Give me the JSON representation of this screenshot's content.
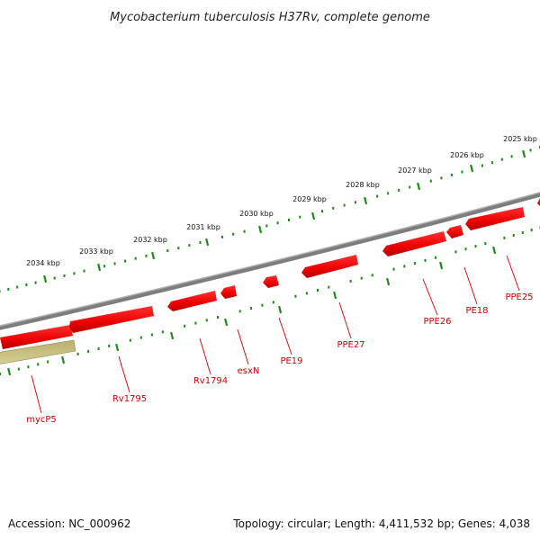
{
  "map": {
    "title": "Mycobacterium tuberculosis H37Rv, complete genome",
    "accession": "Accession: NC_000962",
    "summary": "Topology: circular; Length: 4,411,532 bp; Genes: 4,038"
  },
  "scale": {
    "unit_labels": [
      "2025 kbp",
      "2026 kbp",
      "2027 kbp",
      "2028 kbp",
      "2029 kbp",
      "2030 kbp",
      "2031 kbp",
      "2032 kbp",
      "2033 kbp",
      "2034 kbp"
    ]
  },
  "genes": [
    {
      "name": "PPE25",
      "strand": "reverse"
    },
    {
      "name": "PE18",
      "strand": "reverse"
    },
    {
      "name": "PPE26",
      "strand": "reverse"
    },
    {
      "name": "PPE27",
      "strand": "reverse"
    },
    {
      "name": "PE19",
      "strand": "reverse"
    },
    {
      "name": "esxN",
      "strand": "reverse"
    },
    {
      "name": "Rv1794",
      "strand": "reverse"
    },
    {
      "name": "Rv1795",
      "strand": "reverse"
    },
    {
      "name": "mycP5",
      "strand": "reverse"
    }
  ],
  "colors": {
    "backbone": "#808080",
    "cds": "#ff0000",
    "other_feature": "#c8c07a",
    "tick": "#1a8a1a",
    "gene_label": "#cc0000"
  }
}
